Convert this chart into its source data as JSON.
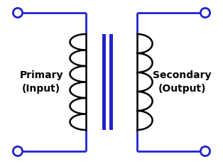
{
  "wire_color": "#2222CC",
  "coil_color": "#000000",
  "core_color": "#2222CC",
  "bg_color": "#FFFFFF",
  "terminal_color": "#FFFFFF",
  "terminal_edge": "#2222CC",
  "label_left_line1": "Primary",
  "label_left_line2": "(Input)",
  "label_right_line1": "Secondary",
  "label_right_line2": "(Output)",
  "label_color": "#000000",
  "label_fontsize": 10,
  "figsize": [
    3.14,
    2.31
  ],
  "dpi": 100,
  "xlim": [
    0,
    10
  ],
  "ylim": [
    0,
    7.7
  ]
}
